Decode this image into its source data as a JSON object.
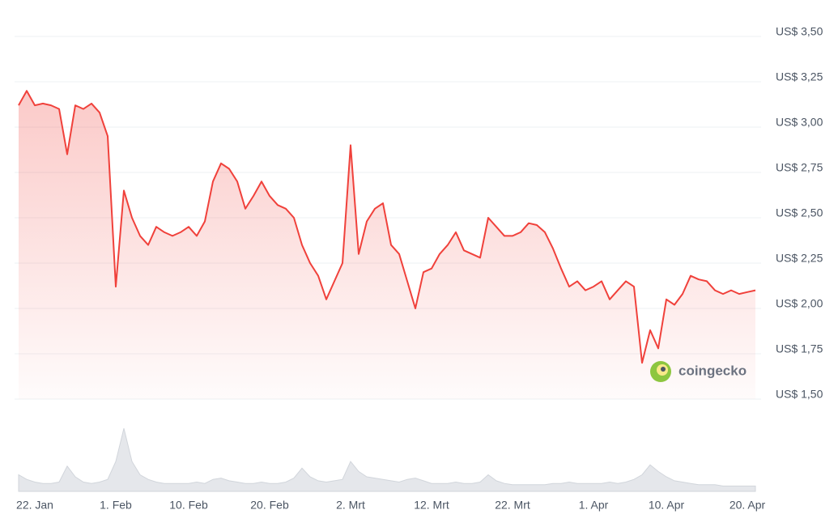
{
  "chart_data": {
    "type": "line",
    "color": "#f0413b",
    "categories": [
      null,
      null,
      "22. Jan",
      null,
      null,
      null,
      null,
      null,
      null,
      null,
      null,
      null,
      "1. Feb",
      null,
      null,
      null,
      null,
      null,
      null,
      null,
      null,
      "10. Feb",
      null,
      null,
      null,
      null,
      null,
      null,
      null,
      null,
      null,
      "20. Feb",
      null,
      null,
      null,
      null,
      null,
      null,
      null,
      null,
      null,
      "2. Mrt",
      null,
      null,
      null,
      null,
      null,
      null,
      null,
      null,
      null,
      "12. Mrt",
      null,
      null,
      null,
      null,
      null,
      null,
      null,
      null,
      null,
      "22. Mrt",
      null,
      null,
      null,
      null,
      null,
      null,
      null,
      null,
      null,
      "1. Apr",
      null,
      null,
      null,
      null,
      null,
      null,
      null,
      null,
      "10. Apr",
      null,
      null,
      null,
      null,
      null,
      null,
      null,
      null,
      null,
      "20. Apr",
      null
    ],
    "values": [
      3.12,
      3.2,
      3.12,
      3.13,
      3.12,
      3.1,
      2.85,
      3.12,
      3.1,
      3.13,
      3.08,
      2.95,
      2.12,
      2.65,
      2.5,
      2.4,
      2.35,
      2.45,
      2.42,
      2.4,
      2.42,
      2.45,
      2.4,
      2.48,
      2.7,
      2.8,
      2.77,
      2.7,
      2.55,
      2.62,
      2.7,
      2.62,
      2.57,
      2.55,
      2.5,
      2.35,
      2.25,
      2.18,
      2.05,
      2.15,
      2.25,
      2.9,
      2.3,
      2.48,
      2.55,
      2.58,
      2.35,
      2.3,
      2.15,
      2.0,
      2.2,
      2.22,
      2.3,
      2.35,
      2.42,
      2.32,
      2.3,
      2.28,
      2.5,
      2.45,
      2.4,
      2.4,
      2.42,
      2.47,
      2.46,
      2.42,
      2.33,
      2.22,
      2.12,
      2.15,
      2.1,
      2.12,
      2.15,
      2.05,
      2.1,
      2.15,
      2.12,
      1.7,
      1.88,
      1.78,
      2.05,
      2.02,
      2.08,
      2.18,
      2.16,
      2.15,
      2.1,
      2.08,
      2.1,
      2.08,
      2.09,
      2.1
    ],
    "ylim": [
      1.5,
      3.5
    ],
    "yticks": [
      {
        "value": 1.5,
        "label": "US$ 1,50"
      },
      {
        "value": 1.75,
        "label": "US$ 1,75"
      },
      {
        "value": 2.0,
        "label": "US$ 2,00"
      },
      {
        "value": 2.25,
        "label": "US$ 2,25"
      },
      {
        "value": 2.5,
        "label": "US$ 2,50"
      },
      {
        "value": 2.75,
        "label": "US$ 2,75"
      },
      {
        "value": 3.0,
        "label": "US$ 3,00"
      },
      {
        "value": 3.25,
        "label": "US$ 3,25"
      },
      {
        "value": 3.5,
        "label": "US$ 3,50"
      }
    ],
    "grid": true,
    "volume": {
      "color": "#e5e7eb",
      "ylim": [
        0,
        100
      ],
      "values": [
        25,
        18,
        14,
        12,
        12,
        14,
        38,
        22,
        14,
        12,
        14,
        18,
        45,
        95,
        45,
        25,
        18,
        14,
        12,
        12,
        12,
        12,
        14,
        12,
        18,
        20,
        16,
        14,
        12,
        12,
        14,
        12,
        12,
        14,
        20,
        35,
        22,
        16,
        14,
        16,
        18,
        45,
        30,
        22,
        20,
        18,
        16,
        14,
        18,
        20,
        16,
        12,
        12,
        12,
        14,
        12,
        12,
        14,
        25,
        16,
        12,
        10,
        10,
        10,
        10,
        10,
        12,
        12,
        14,
        12,
        12,
        12,
        12,
        14,
        12,
        14,
        18,
        25,
        40,
        30,
        22,
        16,
        14,
        12,
        10,
        10,
        10,
        8,
        8,
        8,
        8,
        8
      ]
    },
    "watermark": "coingecko"
  }
}
